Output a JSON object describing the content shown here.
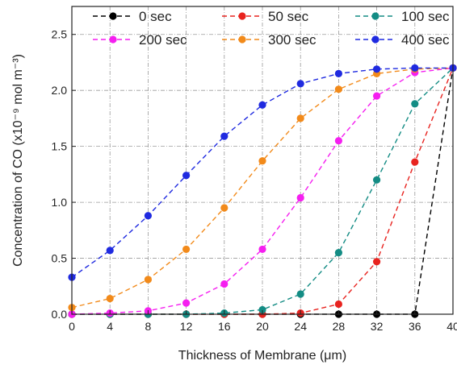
{
  "chart_data": {
    "type": "line",
    "title": "",
    "xlabel": "Thickness of Membrane (μm)",
    "ylabel": "Concentration of CO (x10⁻⁹ mol m⁻³)",
    "xlim": [
      0,
      40
    ],
    "ylim": [
      0,
      2.75
    ],
    "xticks": [
      0,
      4,
      8,
      12,
      16,
      20,
      24,
      28,
      32,
      36,
      40
    ],
    "yticks": [
      0.0,
      0.5,
      1.0,
      1.5,
      2.0,
      2.5
    ],
    "ytick_labels": [
      "0.0",
      "0.5",
      "1.0",
      "1.5",
      "2.0",
      "2.5"
    ],
    "grid": true,
    "legend": "top",
    "x": [
      0,
      4,
      8,
      12,
      16,
      20,
      24,
      28,
      32,
      36,
      40
    ],
    "series": [
      {
        "name": "0 sec",
        "color": "#000000",
        "values": [
          0,
          0,
          0,
          0,
          0,
          0,
          0,
          0,
          0,
          0,
          2.2
        ]
      },
      {
        "name": "50 sec",
        "color": "#e8231f",
        "values": [
          0,
          0,
          0,
          0,
          0,
          0,
          0.01,
          0.09,
          0.47,
          1.36,
          2.2
        ]
      },
      {
        "name": "100 sec",
        "color": "#138c84",
        "values": [
          0,
          0,
          0,
          0,
          0.01,
          0.04,
          0.18,
          0.55,
          1.2,
          1.88,
          2.2
        ]
      },
      {
        "name": "200 sec",
        "color": "#f51ff0",
        "values": [
          0,
          0.01,
          0.03,
          0.1,
          0.27,
          0.58,
          1.04,
          1.55,
          1.95,
          2.16,
          2.2
        ]
      },
      {
        "name": "300 sec",
        "color": "#f28a1a",
        "values": [
          0.06,
          0.14,
          0.31,
          0.58,
          0.95,
          1.37,
          1.75,
          2.01,
          2.15,
          2.19,
          2.2
        ]
      },
      {
        "name": "400 sec",
        "color": "#1f2ae0",
        "values": [
          0.33,
          0.57,
          0.88,
          1.24,
          1.59,
          1.87,
          2.06,
          2.15,
          2.19,
          2.2,
          2.2
        ]
      }
    ]
  }
}
